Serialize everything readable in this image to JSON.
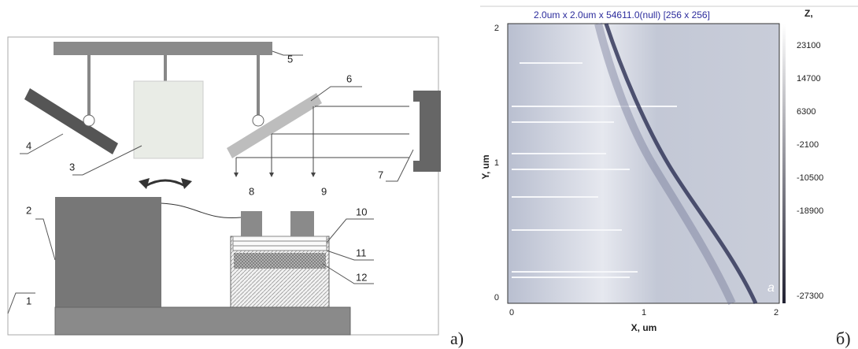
{
  "diagram": {
    "labels": [
      "1",
      "2",
      "3",
      "4",
      "5",
      "6",
      "7",
      "8",
      "9",
      "10",
      "11",
      "12"
    ],
    "caption": "а)"
  },
  "afm": {
    "title": "2.0um x 2.0um x 54611.0(null) [256 x 256]",
    "y_label": "Y, um",
    "x_label": "X, um",
    "yticks": [
      "2",
      "1",
      "0"
    ],
    "xticks": [
      "0",
      "1",
      "2"
    ],
    "z_label": "Z,",
    "zticks": [
      "23100",
      "14700",
      "6300",
      "-2100",
      "-10500",
      "-18900",
      "-27300"
    ],
    "corner_label": "a",
    "caption": "б)"
  }
}
